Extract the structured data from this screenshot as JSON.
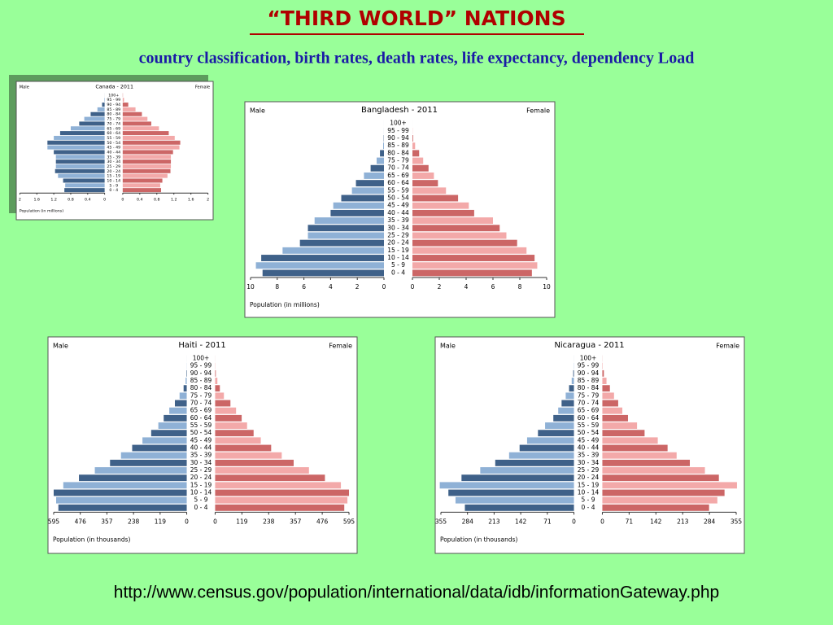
{
  "title": "“THIRD WORLD” NATIONS",
  "subtitle": "country classification, birth rates, death rates, life expectancy, dependency Load",
  "source_url": "http://www.census.gov/population/international/data/idb/informationGateway.php",
  "chart_data": [
    {
      "type": "pyramid",
      "title": "Canada - 2011",
      "x_label": "Population (in millions)",
      "categories": [
        "0 - 4",
        "5 - 9",
        "10 - 14",
        "15 - 19",
        "20 - 24",
        "25 - 29",
        "30 - 34",
        "35 - 39",
        "40 - 44",
        "45 - 49",
        "50 - 54",
        "55 - 59",
        "60 - 64",
        "65 - 69",
        "70 - 74",
        "75 - 79",
        "80 - 84",
        "85 - 89",
        "90 - 94",
        "95 - 99",
        "100+"
      ],
      "series": [
        {
          "name": "Male",
          "colors": [
            "#3f6189",
            "#8fb1d6"
          ],
          "values": [
            0.95,
            0.93,
            0.98,
            1.1,
            1.17,
            1.15,
            1.15,
            1.15,
            1.2,
            1.35,
            1.35,
            1.2,
            1.05,
            0.8,
            0.6,
            0.48,
            0.33,
            0.17,
            0.06,
            0.01,
            0.001
          ]
        },
        {
          "name": "Female",
          "colors": [
            "#cc6666",
            "#f3a9a9"
          ],
          "values": [
            0.9,
            0.88,
            0.93,
            1.05,
            1.12,
            1.13,
            1.13,
            1.13,
            1.18,
            1.33,
            1.35,
            1.22,
            1.08,
            0.85,
            0.67,
            0.58,
            0.45,
            0.3,
            0.13,
            0.03,
            0.005
          ]
        }
      ],
      "xlim": [
        0,
        2
      ],
      "xticks": [
        0,
        0.4,
        0.8,
        1.2,
        1.6,
        2
      ]
    },
    {
      "type": "pyramid",
      "title": "Bangladesh - 2011",
      "x_label": "Population (in millions)",
      "categories": [
        "0 - 4",
        "5 - 9",
        "10 - 14",
        "15 - 19",
        "20 - 24",
        "25 - 29",
        "30 - 34",
        "35 - 39",
        "40 - 44",
        "45 - 49",
        "50 - 54",
        "55 - 59",
        "60 - 64",
        "65 - 69",
        "70 - 74",
        "75 - 79",
        "80 - 84",
        "85 - 89",
        "90 - 94",
        "95 - 99",
        "100+"
      ],
      "series": [
        {
          "name": "Male",
          "colors": [
            "#3f6189",
            "#8fb1d6"
          ],
          "values": [
            9.1,
            9.6,
            9.2,
            7.6,
            6.3,
            5.7,
            5.7,
            5.2,
            4.0,
            3.8,
            3.2,
            2.4,
            2.1,
            1.5,
            1.0,
            0.55,
            0.3,
            0.06,
            0.02,
            0.005,
            0.001
          ]
        },
        {
          "name": "Female",
          "colors": [
            "#cc6666",
            "#f3a9a9"
          ],
          "values": [
            8.9,
            9.3,
            9.1,
            8.5,
            7.8,
            7.0,
            6.5,
            6.0,
            4.6,
            4.2,
            3.4,
            2.5,
            1.9,
            1.6,
            1.2,
            0.8,
            0.5,
            0.2,
            0.05,
            0.01,
            0.001
          ]
        }
      ],
      "xlim": [
        0,
        10
      ],
      "xticks": [
        0,
        2,
        4,
        6,
        8,
        10
      ]
    },
    {
      "type": "pyramid",
      "title": "Haiti - 2011",
      "x_label": "Population (in thousands)",
      "categories": [
        "0 - 4",
        "5 - 9",
        "10 - 14",
        "15 - 19",
        "20 - 24",
        "25 - 29",
        "30 - 34",
        "35 - 39",
        "40 - 44",
        "45 - 49",
        "50 - 54",
        "55 - 59",
        "60 - 64",
        "65 - 69",
        "70 - 74",
        "75 - 79",
        "80 - 84",
        "85 - 89",
        "90 - 94",
        "95 - 99",
        "100+"
      ],
      "series": [
        {
          "name": "Male",
          "colors": [
            "#3f6189",
            "#8fb1d6"
          ],
          "values": [
            574,
            584,
            595,
            552,
            482,
            411,
            343,
            294,
            244,
            198,
            159,
            127,
            103,
            78,
            53,
            32,
            14,
            5,
            2,
            0.5,
            0.1
          ]
        },
        {
          "name": "Female",
          "colors": [
            "#cc6666",
            "#f3a9a9"
          ],
          "values": [
            574,
            588,
            595,
            559,
            488,
            417,
            349,
            296,
            249,
            203,
            171,
            142,
            118,
            93,
            68,
            39,
            21,
            10,
            3,
            1,
            0.2
          ]
        }
      ],
      "xlim": [
        0,
        595
      ],
      "xticks": [
        0,
        119,
        238,
        357,
        476,
        595
      ]
    },
    {
      "type": "pyramid",
      "title": "Nicaragua - 2011",
      "x_label": "Population (in thousands)",
      "categories": [
        "0 - 4",
        "5 - 9",
        "10 - 14",
        "15 - 19",
        "20 - 24",
        "25 - 29",
        "30 - 34",
        "35 - 39",
        "40 - 44",
        "45 - 49",
        "50 - 54",
        "55 - 59",
        "60 - 64",
        "65 - 69",
        "70 - 74",
        "75 - 79",
        "80 - 84",
        "85 - 89",
        "90 - 94",
        "95 - 99",
        "100+"
      ],
      "series": [
        {
          "name": "Male",
          "colors": [
            "#3f6189",
            "#8fb1d6"
          ],
          "values": [
            291,
            316,
            335,
            358,
            300,
            250,
            210,
            173,
            145,
            125,
            96,
            77,
            55,
            42,
            33,
            22,
            13,
            6,
            2,
            0.5,
            0.1
          ]
        },
        {
          "name": "Female",
          "colors": [
            "#cc6666",
            "#f3a9a9"
          ],
          "values": [
            283,
            305,
            324,
            357,
            309,
            272,
            232,
            197,
            173,
            147,
            112,
            92,
            68,
            53,
            42,
            31,
            20,
            11,
            4,
            1,
            0.2
          ]
        }
      ],
      "xlim": [
        0,
        355
      ],
      "xticks": [
        0,
        71,
        142,
        213,
        284,
        355
      ]
    }
  ]
}
